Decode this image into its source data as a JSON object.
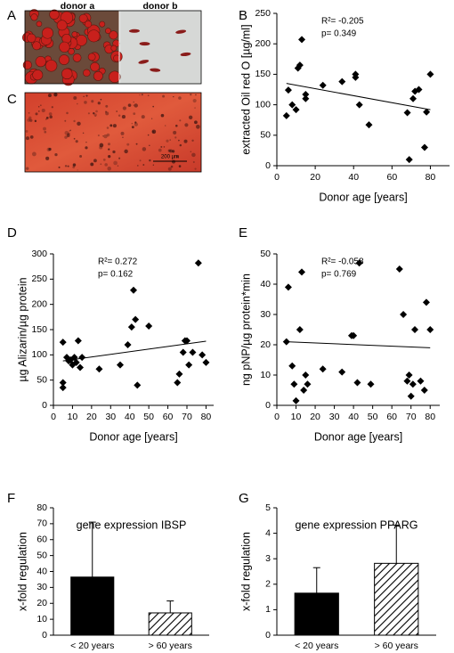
{
  "images": [
    {
      "label": "A",
      "captions": [
        "donor a",
        "donor b"
      ]
    },
    {
      "label": "C",
      "scale_bar": "200 µm"
    }
  ],
  "chart_data": [
    {
      "type": "scatter",
      "label": "B",
      "xlabel": "Donor age [years]",
      "ylabel": "extracted Oil red O [µg/ml]",
      "annotations": [
        "R²= -0.205",
        "p= 0.349"
      ],
      "x": [
        5,
        6,
        8,
        10,
        11,
        12,
        13,
        15,
        15,
        24,
        34,
        41,
        41,
        43,
        48,
        68,
        69,
        71,
        72,
        74,
        77,
        78,
        80
      ],
      "values": [
        82,
        124,
        100,
        92,
        160,
        165,
        207,
        110,
        117,
        132,
        138,
        145,
        150,
        100,
        67,
        87,
        10,
        110,
        122,
        125,
        30,
        88,
        150
      ],
      "trendline": {
        "x": [
          5,
          80
        ],
        "y": [
          135,
          92
        ]
      },
      "color": "#000000",
      "xlim": [
        0,
        90
      ],
      "xticks": [
        0,
        20,
        40,
        60,
        80
      ],
      "ylim": [
        0,
        250
      ],
      "yticks": [
        0,
        50,
        100,
        150,
        200,
        250
      ]
    },
    {
      "type": "scatter",
      "label": "D",
      "xlabel": "Donor age [years]",
      "ylabel": "µg Alizarin/µg protein",
      "annotations": [
        "R²= 0.272",
        "p= 0.162"
      ],
      "x": [
        5,
        5,
        5,
        7,
        8,
        9,
        10,
        11,
        12,
        13,
        14,
        15,
        24,
        35,
        39,
        41,
        42,
        43,
        44,
        50,
        65,
        66,
        68,
        69,
        70,
        71,
        73,
        76,
        78,
        80
      ],
      "values": [
        125,
        35,
        45,
        95,
        88,
        90,
        80,
        95,
        85,
        128,
        75,
        95,
        72,
        80,
        120,
        155,
        228,
        170,
        40,
        157,
        45,
        62,
        105,
        128,
        128,
        80,
        105,
        282,
        100,
        85
      ],
      "trendline": {
        "x": [
          5,
          80
        ],
        "y": [
          88,
          127
        ]
      },
      "color": "#000000",
      "xlim": [
        0,
        84
      ],
      "xticks": [
        0,
        10,
        20,
        30,
        40,
        50,
        60,
        70,
        80
      ],
      "ylim": [
        0,
        300
      ],
      "yticks": [
        0,
        50,
        100,
        150,
        200,
        250,
        300
      ]
    },
    {
      "type": "scatter",
      "label": "E",
      "xlabel": "Donor age [years]",
      "ylabel": "ng pNP/µg protein*min",
      "annotations": [
        "R²= -0.058",
        "p= 0.769"
      ],
      "x": [
        5,
        6,
        8,
        9,
        10,
        12,
        13,
        14,
        15,
        16,
        24,
        34,
        39,
        40,
        42,
        43,
        49,
        64,
        66,
        68,
        69,
        70,
        71,
        72,
        75,
        77,
        78,
        80
      ],
      "values": [
        21,
        39,
        13,
        7,
        1.5,
        25,
        44,
        5,
        10,
        7,
        12,
        11,
        23,
        23,
        7.5,
        47,
        7,
        45,
        30,
        8,
        10,
        3,
        7,
        25,
        8,
        5,
        34,
        25
      ],
      "trendline": {
        "x": [
          5,
          80
        ],
        "y": [
          21,
          19
        ]
      },
      "color": "#000000",
      "xlim": [
        0,
        85
      ],
      "xticks": [
        0,
        10,
        20,
        30,
        40,
        50,
        60,
        70,
        80
      ],
      "ylim": [
        0,
        50
      ],
      "yticks": [
        0,
        10,
        20,
        30,
        40,
        50
      ]
    },
    {
      "type": "bar",
      "label": "F",
      "title": "gene expression IBSP",
      "ylabel": "x-fold regulation",
      "categories": [
        "< 20 years",
        "> 60 years"
      ],
      "values": [
        36.5,
        14
      ],
      "errors": [
        34.5,
        7.5
      ],
      "fills": [
        "solid",
        "hatch"
      ],
      "color": "#000000",
      "ylim": [
        0,
        80
      ],
      "yticks": [
        0,
        10,
        20,
        30,
        40,
        50,
        60,
        70,
        80
      ]
    },
    {
      "type": "bar",
      "label": "G",
      "title": "gene expression PPARG",
      "ylabel": "x-fold regulation",
      "categories": [
        "< 20 years",
        "> 60 years"
      ],
      "values": [
        1.65,
        2.82
      ],
      "errors": [
        1.0,
        1.5
      ],
      "fills": [
        "solid",
        "hatch"
      ],
      "color": "#000000",
      "ylim": [
        0,
        5
      ],
      "yticks": [
        0,
        1,
        2,
        3,
        4,
        5
      ]
    }
  ]
}
